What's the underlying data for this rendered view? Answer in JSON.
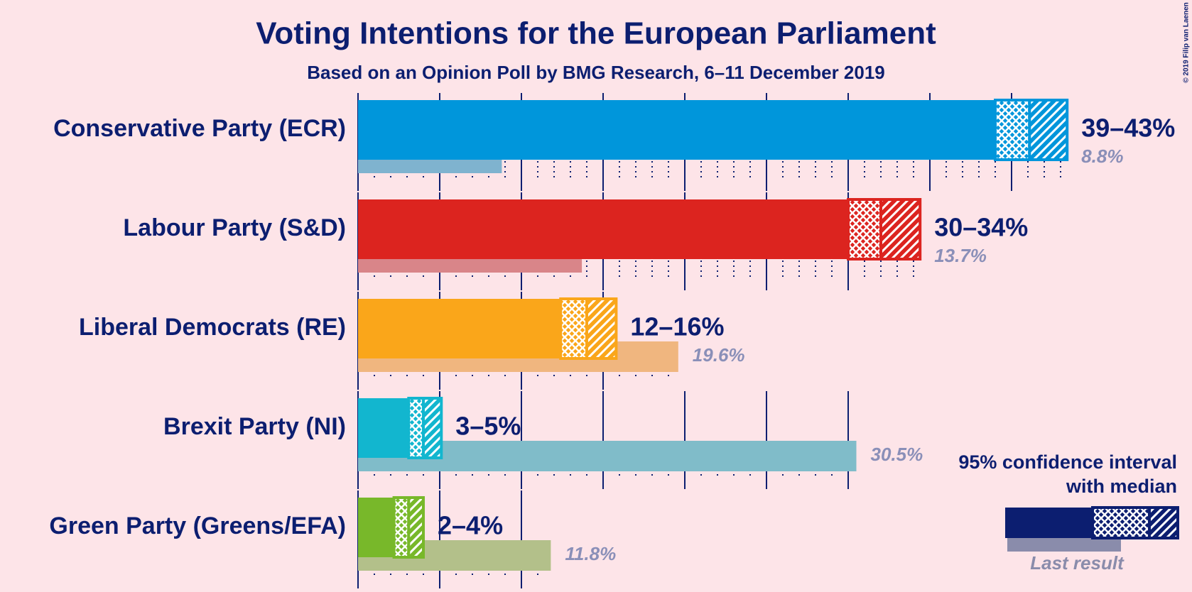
{
  "chart_data": {
    "type": "interval-bar",
    "title": "Voting Intentions for the European Parliament",
    "subtitle": "Based on an Opinion Poll by BMG Research, 6–11 December 2019",
    "copyright": "© 2019 Filip van Laenen",
    "xlim": [
      0,
      50
    ],
    "xticks": [
      0,
      5,
      10,
      15,
      20,
      25,
      30,
      35,
      40
    ],
    "minor_xticks": [
      1,
      2,
      3,
      4,
      6,
      7,
      8,
      9,
      11,
      12,
      13,
      14,
      16,
      17,
      18,
      19,
      21,
      22,
      23,
      24,
      26,
      27,
      28,
      29,
      31,
      32,
      33,
      34,
      36,
      37,
      38,
      39,
      41,
      42,
      43
    ],
    "series": [
      {
        "name": "Conservative Party (ECR)",
        "color": "#0096db",
        "last_color": "#7fb3cf",
        "ci": [
          39,
          43.4
        ],
        "median": 41.1,
        "label": "39–43%",
        "last_result": 8.8,
        "last_result_label": "8.8%"
      },
      {
        "name": "Labour Party (S&D)",
        "color": "#dc241f",
        "last_color": "#d98589",
        "ci": [
          30,
          34.4
        ],
        "median": 32,
        "label": "30–34%",
        "last_result": 13.7,
        "last_result_label": "13.7%"
      },
      {
        "name": "Liberal Democrats (RE)",
        "color": "#faa61a",
        "last_color": "#f0b67f",
        "ci": [
          12.4,
          15.8
        ],
        "median": 14,
        "label": "12–16%",
        "last_result": 19.6,
        "last_result_label": "19.6%"
      },
      {
        "name": "Brexit Party (NI)",
        "color": "#12b6cf",
        "last_color": "#80bcc9",
        "ci": [
          3.1,
          5.1
        ],
        "median": 4,
        "label": "3–5%",
        "last_result": 30.5,
        "last_result_label": "30.5%"
      },
      {
        "name": "Green Party (Greens/EFA)",
        "color": "#78b82a",
        "last_color": "#b3c08a",
        "ci": [
          2.2,
          4
        ],
        "median": 3.1,
        "label": "2–4%",
        "last_result": 11.8,
        "last_result_label": "11.8%"
      }
    ],
    "legend": {
      "ci_text": [
        "95% confidence interval",
        "with median"
      ],
      "last_text": "Last result",
      "color": "#0c1e70",
      "last_color": "#8a8cab"
    }
  }
}
